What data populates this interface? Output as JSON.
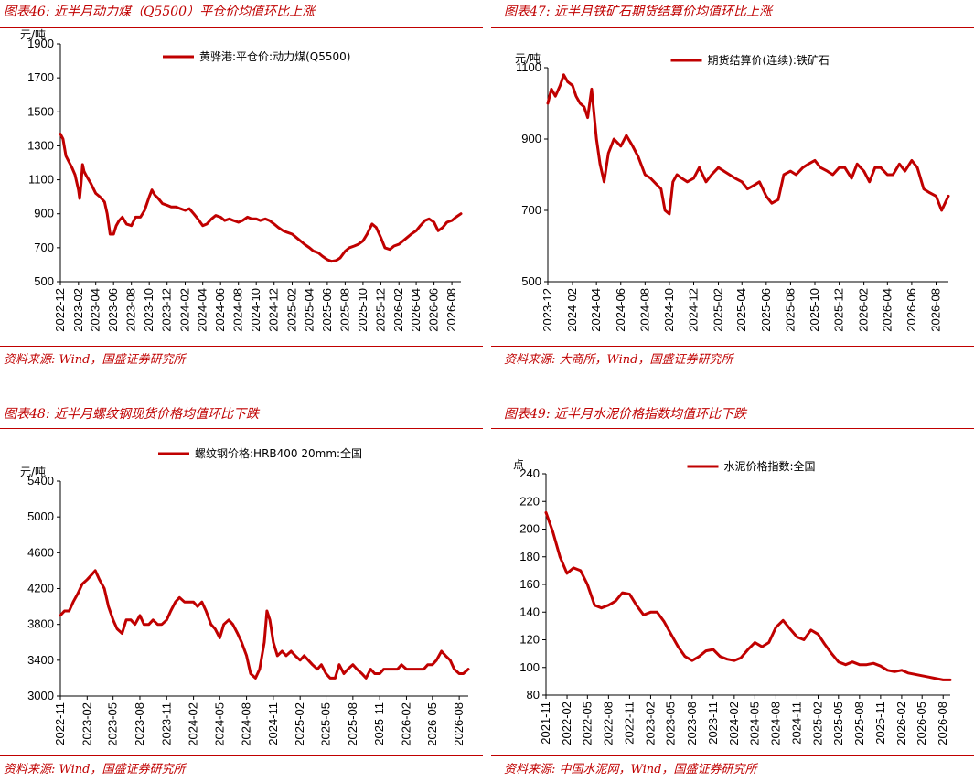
{
  "chart_data": [
    {
      "id": "coal",
      "type": "line",
      "title": "图表46:  近半月动力煤（Q5500）平仓价均值环比上涨",
      "source": "资料来源:  Wind，国盛证券研究所",
      "unit": "元/吨",
      "color": "#c00000",
      "legend_position": "top-center",
      "grid": false,
      "ylim": [
        500,
        1900
      ],
      "yticks": [
        500,
        700,
        900,
        1100,
        1300,
        1500,
        1700,
        1900
      ],
      "xlim": [
        "2022-12",
        "2026-09"
      ],
      "xticks": [
        "2022-12",
        "2023-02",
        "2023-04",
        "2023-06",
        "2023-08",
        "2023-10",
        "2023-12",
        "2024-02",
        "2024-04",
        "2024-06",
        "2024-08",
        "2024-10",
        "2024-12",
        "2025-02",
        "2025-04",
        "2025-06",
        "2025-08",
        "2025-10",
        "2025-12",
        "2026-02",
        "2026-04",
        "2026-06",
        "2026-08"
      ],
      "series": [
        {
          "name": "黄骅港:平仓价:动力煤(Q5500)",
          "x": [
            "2022-12-01",
            "2022-12-10",
            "2022-12-20",
            "2023-01-01",
            "2023-01-10",
            "2023-01-20",
            "2023-02-01",
            "2023-02-05",
            "2023-02-10",
            "2023-02-15",
            "2023-02-20",
            "2023-03-01",
            "2023-03-15",
            "2023-04-01",
            "2023-04-15",
            "2023-05-01",
            "2023-05-10",
            "2023-05-20",
            "2023-06-01",
            "2023-06-10",
            "2023-06-20",
            "2023-07-01",
            "2023-07-15",
            "2023-08-01",
            "2023-08-15",
            "2023-09-01",
            "2023-09-15",
            "2023-10-01",
            "2023-10-10",
            "2023-10-20",
            "2023-11-01",
            "2023-11-15",
            "2023-12-01",
            "2023-12-15",
            "2024-01-01",
            "2024-01-15",
            "2024-02-01",
            "2024-02-15",
            "2024-03-01",
            "2024-03-15",
            "2024-04-01",
            "2024-04-15",
            "2024-05-01",
            "2024-05-15",
            "2024-06-01",
            "2024-06-15",
            "2024-07-01",
            "2024-07-15",
            "2024-08-01",
            "2024-08-15",
            "2024-09-01",
            "2024-09-15",
            "2024-10-01",
            "2024-10-15",
            "2024-11-01",
            "2024-11-15",
            "2024-12-01",
            "2024-12-15",
            "2025-01-01",
            "2025-01-15",
            "2025-02-01",
            "2025-02-15",
            "2025-03-01",
            "2025-03-15",
            "2025-04-01",
            "2025-04-15",
            "2025-05-01",
            "2025-05-15",
            "2025-06-01",
            "2025-06-15",
            "2025-07-01",
            "2025-07-15",
            "2025-08-01",
            "2025-08-15",
            "2025-09-01",
            "2025-09-15",
            "2025-10-01",
            "2025-10-15",
            "2025-11-01",
            "2025-11-15",
            "2025-12-01",
            "2025-12-15",
            "2026-01-01",
            "2026-01-15",
            "2026-02-01",
            "2026-02-15",
            "2026-03-01",
            "2026-03-15",
            "2026-04-01",
            "2026-04-15",
            "2026-05-01",
            "2026-05-15",
            "2026-06-01",
            "2026-06-15",
            "2026-07-01",
            "2026-07-15",
            "2026-08-01",
            "2026-08-15",
            "2026-09-01"
          ],
          "values": [
            1370,
            1340,
            1240,
            1200,
            1170,
            1130,
            1040,
            990,
            1080,
            1190,
            1150,
            1120,
            1080,
            1020,
            1000,
            970,
            900,
            780,
            780,
            830,
            860,
            880,
            840,
            830,
            880,
            880,
            920,
            1000,
            1040,
            1010,
            990,
            960,
            950,
            940,
            940,
            930,
            920,
            930,
            900,
            870,
            830,
            840,
            870,
            890,
            880,
            860,
            870,
            860,
            850,
            860,
            880,
            870,
            870,
            860,
            870,
            860,
            840,
            820,
            800,
            790,
            780,
            760,
            740,
            720,
            700,
            680,
            670,
            650,
            630,
            620,
            625,
            640,
            680,
            700,
            710,
            720,
            740,
            780,
            840,
            820,
            760,
            700,
            690,
            710,
            720,
            740,
            760,
            780,
            800,
            830,
            860,
            870,
            850,
            800,
            820,
            850,
            860,
            880,
            900
          ]
        }
      ]
    },
    {
      "id": "iron-ore",
      "type": "line",
      "title": "图表47:  近半月铁矿石期货结算价均值环比上涨",
      "source": "资料来源:  大商所，Wind，国盛证券研究所",
      "unit": "元/吨",
      "color": "#c00000",
      "legend_position": "top-center",
      "grid": false,
      "ylim": [
        500,
        1100
      ],
      "yticks": [
        500,
        700,
        900,
        1100
      ],
      "xlim": [
        "2023-12",
        "2026-09"
      ],
      "xticks": [
        "2023-12",
        "2024-02",
        "2024-04",
        "2024-06",
        "2024-08",
        "2024-10",
        "2024-12",
        "2025-02",
        "2025-04",
        "2025-06",
        "2025-08",
        "2025-10",
        "2025-12",
        "2026-02",
        "2026-04",
        "2026-06",
        "2026-08"
      ],
      "series": [
        {
          "name": "期货结算价(连续):铁矿石",
          "x": [
            "2023-12-01",
            "2023-12-10",
            "2023-12-20",
            "2024-01-01",
            "2024-01-10",
            "2024-01-20",
            "2024-02-01",
            "2024-02-10",
            "2024-02-20",
            "2024-03-01",
            "2024-03-10",
            "2024-03-20",
            "2024-04-01",
            "2024-04-10",
            "2024-04-20",
            "2024-05-01",
            "2024-05-15",
            "2024-06-01",
            "2024-06-15",
            "2024-07-01",
            "2024-07-15",
            "2024-08-01",
            "2024-08-15",
            "2024-09-01",
            "2024-09-10",
            "2024-09-20",
            "2024-10-01",
            "2024-10-10",
            "2024-10-20",
            "2024-11-01",
            "2024-11-15",
            "2024-12-01",
            "2024-12-15",
            "2025-01-01",
            "2025-01-15",
            "2025-02-01",
            "2025-02-15",
            "2025-03-01",
            "2025-03-15",
            "2025-04-01",
            "2025-04-15",
            "2025-05-01",
            "2025-05-15",
            "2025-06-01",
            "2025-06-15",
            "2025-07-01",
            "2025-07-15",
            "2025-08-01",
            "2025-08-15",
            "2025-09-01",
            "2025-09-15",
            "2025-10-01",
            "2025-10-15",
            "2025-11-01",
            "2025-11-15",
            "2025-12-01",
            "2025-12-15",
            "2026-01-01",
            "2026-01-15",
            "2026-02-01",
            "2026-02-15",
            "2026-03-01",
            "2026-03-15",
            "2026-04-01",
            "2026-04-15",
            "2026-05-01",
            "2026-05-15",
            "2026-06-01",
            "2026-06-15",
            "2026-07-01",
            "2026-07-15",
            "2026-08-01",
            "2026-08-15",
            "2026-09-01"
          ],
          "values": [
            1000,
            1040,
            1020,
            1050,
            1080,
            1060,
            1050,
            1020,
            1000,
            990,
            960,
            1040,
            900,
            830,
            780,
            860,
            900,
            880,
            910,
            880,
            850,
            800,
            790,
            770,
            760,
            700,
            690,
            780,
            800,
            790,
            780,
            790,
            820,
            780,
            800,
            820,
            810,
            800,
            790,
            780,
            760,
            770,
            780,
            740,
            720,
            730,
            800,
            810,
            800,
            820,
            830,
            840,
            820,
            810,
            800,
            820,
            820,
            790,
            830,
            810,
            780,
            820,
            820,
            800,
            800,
            830,
            810,
            840,
            820,
            760,
            750,
            740,
            700,
            740
          ]
        }
      ]
    },
    {
      "id": "rebar",
      "type": "line",
      "title": "图表48:  近半月螺纹钢现货价格均值环比下跌",
      "source": "资料来源:  Wind，国盛证券研究所",
      "unit": "元/吨",
      "color": "#c00000",
      "legend_position": "top-center",
      "grid": false,
      "ylim": [
        3000,
        5400
      ],
      "yticks": [
        3000,
        3400,
        3800,
        4200,
        4600,
        5000,
        5400
      ],
      "xlim": [
        "2022-11",
        "2026-09"
      ],
      "xticks": [
        "2022-11",
        "2023-02",
        "2023-05",
        "2023-08",
        "2023-11",
        "2024-02",
        "2024-05",
        "2024-08",
        "2024-11",
        "2025-02",
        "2025-05",
        "2025-08",
        "2025-11",
        "2026-02",
        "2026-05",
        "2026-08"
      ],
      "series": [
        {
          "name": "螺纹钢价格:HRB400 20mm:全国",
          "x": [
            "2022-11-01",
            "2022-11-15",
            "2022-12-01",
            "2022-12-15",
            "2023-01-01",
            "2023-01-15",
            "2023-02-01",
            "2023-02-15",
            "2023-03-01",
            "2023-03-15",
            "2023-04-01",
            "2023-04-15",
            "2023-05-01",
            "2023-05-15",
            "2023-06-01",
            "2023-06-15",
            "2023-07-01",
            "2023-07-15",
            "2023-08-01",
            "2023-08-15",
            "2023-09-01",
            "2023-09-15",
            "2023-10-01",
            "2023-10-15",
            "2023-11-01",
            "2023-11-15",
            "2023-12-01",
            "2023-12-15",
            "2024-01-01",
            "2024-01-15",
            "2024-02-01",
            "2024-02-15",
            "2024-03-01",
            "2024-03-15",
            "2024-04-01",
            "2024-04-15",
            "2024-05-01",
            "2024-05-15",
            "2024-06-01",
            "2024-06-15",
            "2024-07-01",
            "2024-07-15",
            "2024-08-01",
            "2024-08-15",
            "2024-09-01",
            "2024-09-15",
            "2024-10-01",
            "2024-10-10",
            "2024-10-20",
            "2024-11-01",
            "2024-11-15",
            "2024-12-01",
            "2024-12-15",
            "2025-01-01",
            "2025-01-15",
            "2025-02-01",
            "2025-02-15",
            "2025-03-01",
            "2025-03-15",
            "2025-04-01",
            "2025-04-15",
            "2025-05-01",
            "2025-05-15",
            "2025-06-01",
            "2025-06-15",
            "2025-07-01",
            "2025-07-15",
            "2025-08-01",
            "2025-08-15",
            "2025-09-01",
            "2025-09-15",
            "2025-10-01",
            "2025-10-15",
            "2025-11-01",
            "2025-11-15",
            "2025-12-01",
            "2025-12-15",
            "2026-01-01",
            "2026-01-15",
            "2026-02-01",
            "2026-02-15",
            "2026-03-01",
            "2026-03-15",
            "2026-04-01",
            "2026-04-15",
            "2026-05-01",
            "2026-05-15",
            "2026-06-01",
            "2026-06-15",
            "2026-07-01",
            "2026-07-15",
            "2026-08-01",
            "2026-08-15",
            "2026-09-01"
          ],
          "values": [
            3900,
            3950,
            3950,
            4050,
            4150,
            4250,
            4300,
            4350,
            4400,
            4300,
            4200,
            4000,
            3850,
            3750,
            3700,
            3850,
            3850,
            3800,
            3900,
            3800,
            3800,
            3850,
            3800,
            3800,
            3850,
            3950,
            4050,
            4100,
            4050,
            4050,
            4050,
            4000,
            4050,
            3950,
            3800,
            3750,
            3650,
            3800,
            3850,
            3800,
            3700,
            3600,
            3450,
            3250,
            3200,
            3300,
            3600,
            3950,
            3850,
            3600,
            3450,
            3500,
            3450,
            3500,
            3450,
            3400,
            3450,
            3400,
            3350,
            3300,
            3350,
            3250,
            3200,
            3200,
            3350,
            3250,
            3300,
            3350,
            3300,
            3250,
            3200,
            3300,
            3250,
            3250,
            3300,
            3300,
            3300,
            3300,
            3350,
            3300,
            3300,
            3300,
            3300,
            3300,
            3350,
            3350,
            3400,
            3500,
            3450,
            3400,
            3300,
            3250,
            3250,
            3300
          ]
        }
      ]
    },
    {
      "id": "cement",
      "type": "line",
      "title": "图表49:  近半月水泥价格指数均值环比下跌",
      "source": "资料来源:  中国水泥网，Wind，国盛证券研究所",
      "unit": "点",
      "color": "#c00000",
      "legend_position": "top-center",
      "grid": false,
      "ylim": [
        80,
        240
      ],
      "yticks": [
        80,
        100,
        120,
        140,
        160,
        180,
        200,
        220,
        240
      ],
      "xlim": [
        "2021-11",
        "2026-09"
      ],
      "xticks": [
        "2021-11",
        "2022-02",
        "2022-05",
        "2022-08",
        "2022-11",
        "2023-02",
        "2023-05",
        "2023-08",
        "2023-11",
        "2024-02",
        "2024-05",
        "2024-08",
        "2024-11",
        "2025-02",
        "2025-05",
        "2025-08",
        "2025-11",
        "2026-02",
        "2026-05",
        "2026-08"
      ],
      "series": [
        {
          "name": "水泥价格指数:全国",
          "x": [
            "2021-11-01",
            "2021-12-01",
            "2022-01-01",
            "2022-02-01",
            "2022-03-01",
            "2022-04-01",
            "2022-05-01",
            "2022-06-01",
            "2022-07-01",
            "2022-08-01",
            "2022-09-01",
            "2022-10-01",
            "2022-11-01",
            "2022-12-01",
            "2023-01-01",
            "2023-02-01",
            "2023-03-01",
            "2023-04-01",
            "2023-05-01",
            "2023-06-01",
            "2023-07-01",
            "2023-08-01",
            "2023-09-01",
            "2023-10-01",
            "2023-11-01",
            "2023-12-01",
            "2024-01-01",
            "2024-02-01",
            "2024-03-01",
            "2024-04-01",
            "2024-05-01",
            "2024-06-01",
            "2024-07-01",
            "2024-08-01",
            "2024-09-01",
            "2024-10-01",
            "2024-11-01",
            "2024-12-01",
            "2025-01-01",
            "2025-02-01",
            "2025-03-01",
            "2025-04-01",
            "2025-05-01",
            "2025-06-01",
            "2025-07-01",
            "2025-08-01",
            "2025-09-01",
            "2025-10-01",
            "2025-11-01",
            "2025-12-01",
            "2026-01-01",
            "2026-02-01",
            "2026-03-01",
            "2026-04-01",
            "2026-05-01",
            "2026-06-01",
            "2026-07-01",
            "2026-08-01",
            "2026-09-01"
          ],
          "values": [
            212,
            198,
            180,
            168,
            172,
            170,
            160,
            145,
            143,
            145,
            148,
            154,
            153,
            145,
            138,
            140,
            140,
            133,
            124,
            115,
            108,
            105,
            108,
            112,
            113,
            108,
            106,
            105,
            107,
            113,
            118,
            115,
            118,
            129,
            134,
            128,
            122,
            120,
            127,
            124,
            117,
            110,
            104,
            102,
            104,
            102,
            102,
            103,
            101,
            98,
            97,
            98,
            96,
            95,
            94,
            93,
            92,
            91,
            91
          ]
        }
      ]
    }
  ]
}
